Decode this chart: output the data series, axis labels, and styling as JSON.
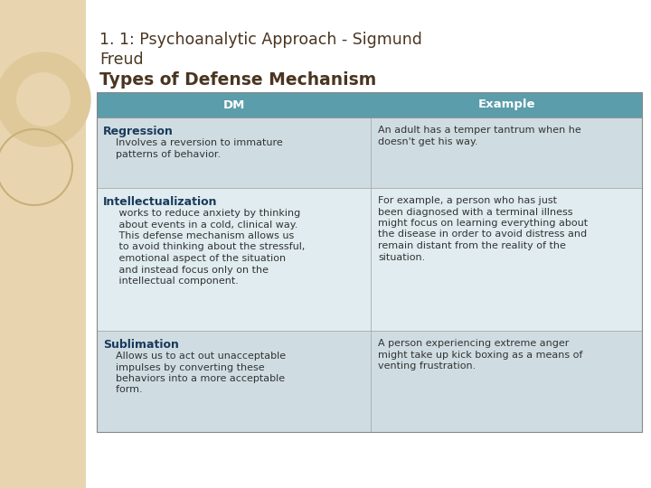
{
  "title_line1a": "1. 1: Psychoanalytic Approach - Sigmund",
  "title_line1b": "Freud",
  "title_line2": "Types of Defense Mechanism",
  "background_color": "#e8d5b0",
  "slide_bg": "#ffffff",
  "header_bg": "#5b9dab",
  "header_text_color": "#ffffff",
  "header_font_size": 9.5,
  "row_bg_odd": "#cfdde2",
  "row_bg_even": "#e0ecf0",
  "title1_color": "#4a3520",
  "title2_color": "#4a3520",
  "col_header": [
    "DM",
    "Example"
  ],
  "rows": [
    {
      "dm_bold": "Regression",
      "dm_text": "    Involves a reversion to immature\n    patterns of behavior.",
      "example_text": "An adult has a temper tantrum when he\ndoesn't get his way."
    },
    {
      "dm_bold": "Intellectualization",
      "dm_text": "     works to reduce anxiety by thinking\n     about events in a cold, clinical way.\n     This defense mechanism allows us\n     to avoid thinking about the stressful,\n     emotional aspect of the situation\n     and instead focus only on the\n     intellectual component.",
      "example_text": "For example, a person who has just\nbeen diagnosed with a terminal illness\nmight focus on learning everything about\nthe disease in order to avoid distress and\nremain distant from the reality of the\nsituation."
    },
    {
      "dm_bold": "Sublimation",
      "dm_text": "    Allows us to act out unacceptable\n    impulses by converting these\n    behaviors into a more acceptable\n    form.",
      "example_text": "A person experiencing extreme anger\nmight take up kick boxing as a means of\nventing frustration."
    }
  ],
  "col1_bold_color": "#1a3a5c",
  "col1_text_color": "#333333",
  "col2_text_color": "#333333",
  "cell_font_size": 8.0,
  "bold_font_size": 9.0,
  "title_font_size": 12.5
}
